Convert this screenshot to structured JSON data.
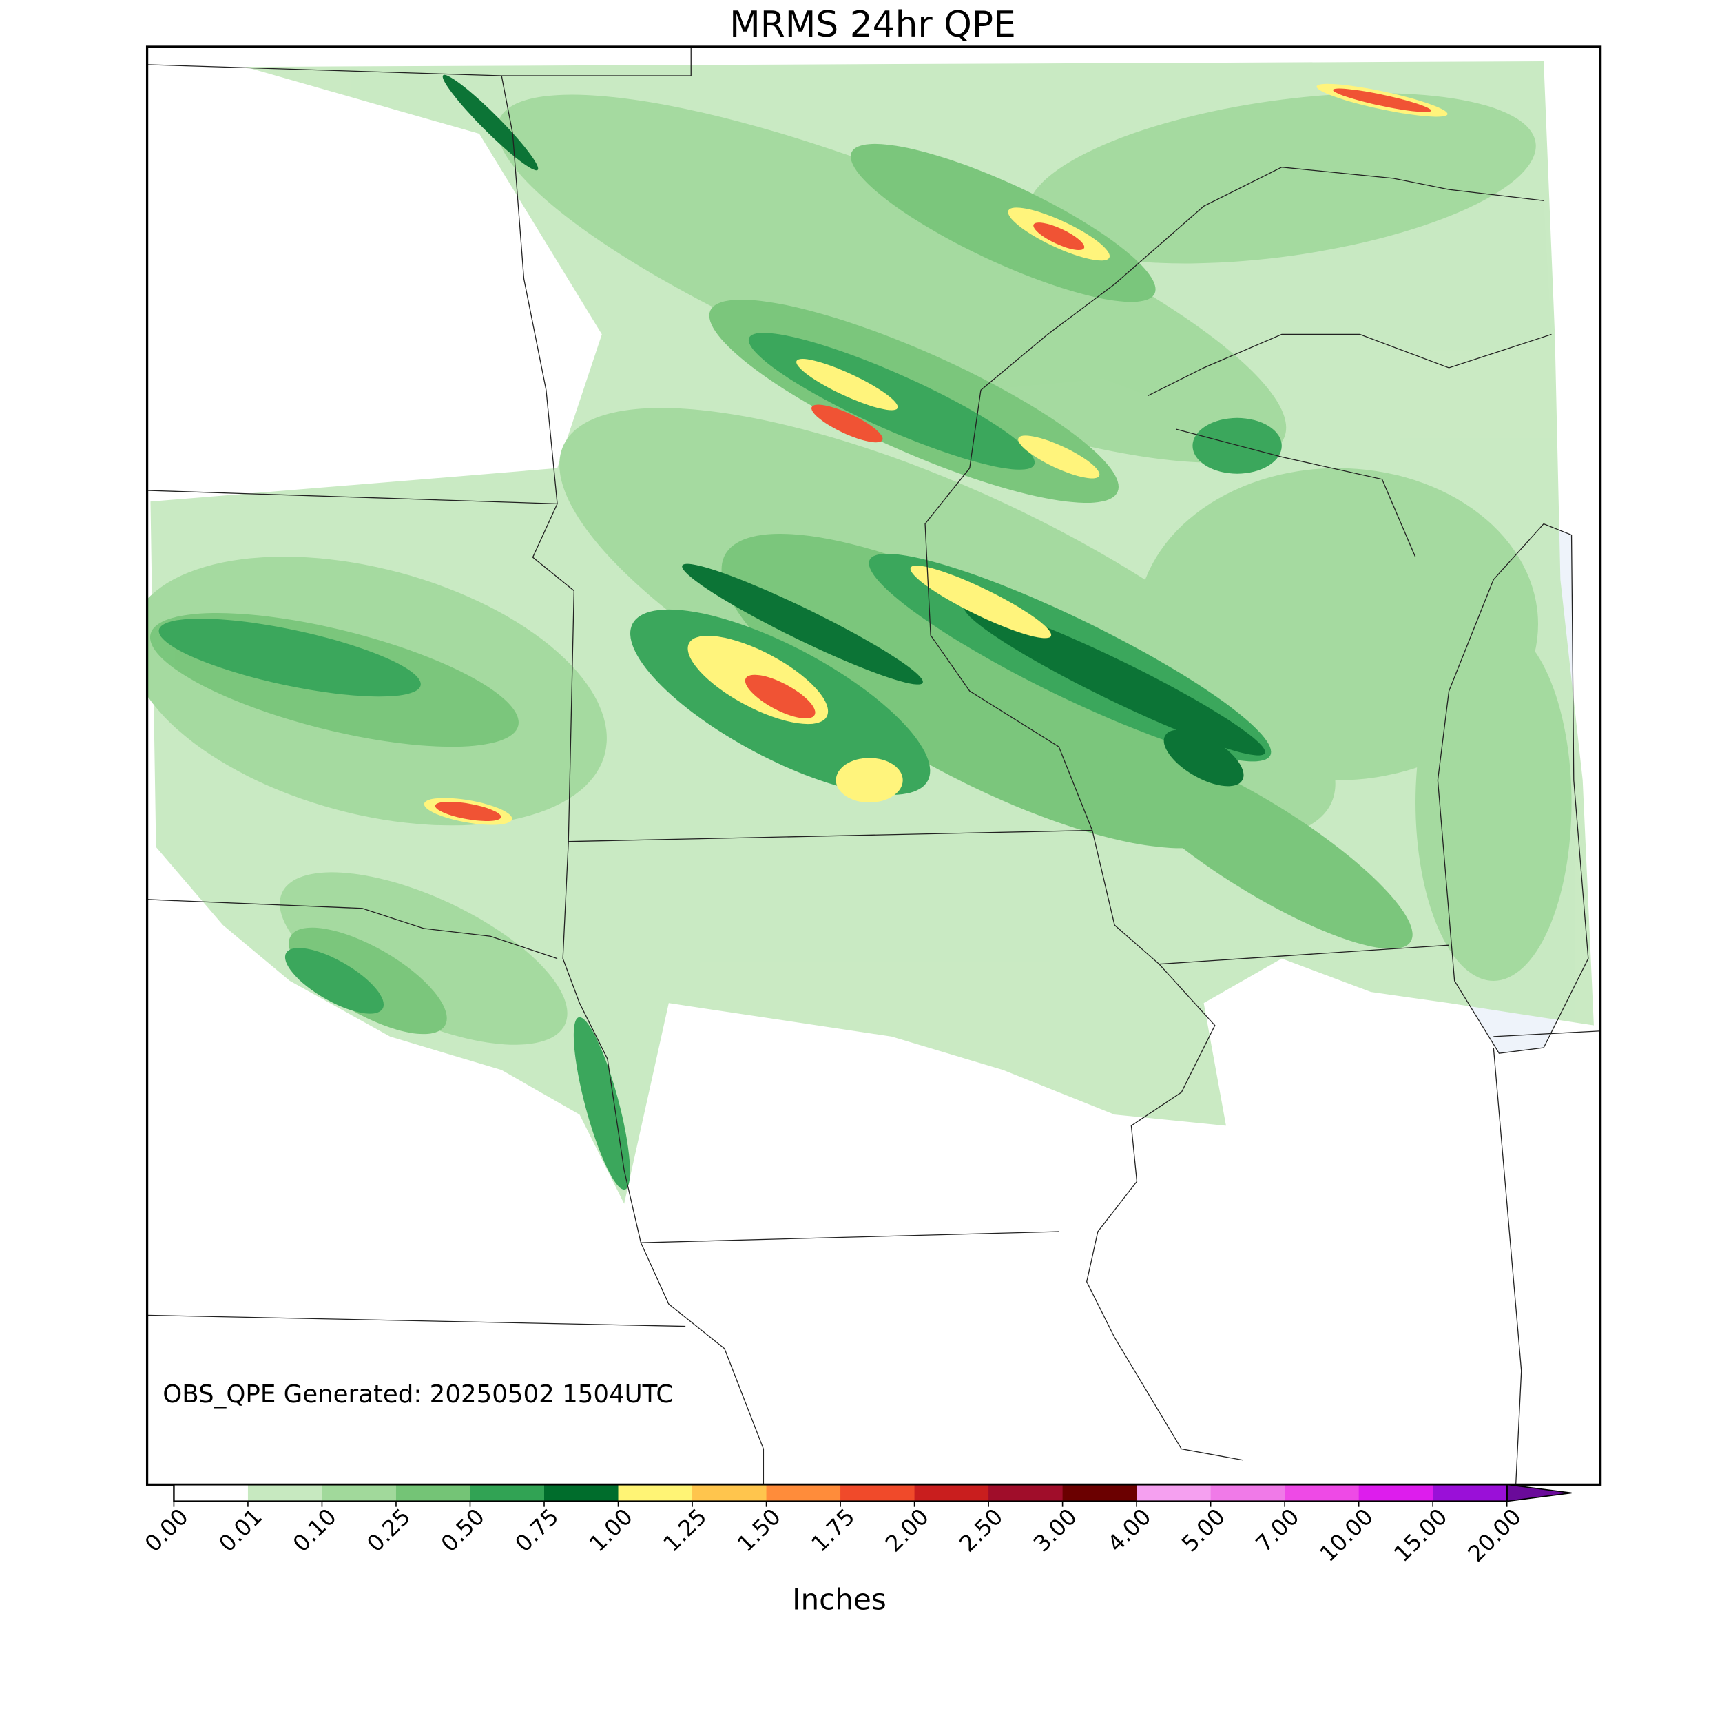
{
  "title": "MRMS 24hr QPE",
  "annotation": "OBS_QPE Generated: 20250502 1504UTC",
  "colorbar": {
    "label": "Inches",
    "ticks": [
      {
        "value": 0,
        "label": "0.00"
      },
      {
        "value": 0.01,
        "label": "0.01"
      },
      {
        "value": 0.1,
        "label": "0.10"
      },
      {
        "value": 0.25,
        "label": "0.25"
      },
      {
        "value": 0.5,
        "label": "0.50"
      },
      {
        "value": 0.75,
        "label": "0.75"
      },
      {
        "value": 1,
        "label": "1.00"
      },
      {
        "value": 1.25,
        "label": "1.25"
      },
      {
        "value": 1.5,
        "label": "1.50"
      },
      {
        "value": 1.75,
        "label": "1.75"
      },
      {
        "value": 2,
        "label": "2.00"
      },
      {
        "value": 2.5,
        "label": "2.50"
      },
      {
        "value": 3,
        "label": "3.00"
      },
      {
        "value": 4,
        "label": "4.00"
      },
      {
        "value": 5,
        "label": "5.00"
      },
      {
        "value": 7,
        "label": "7.00"
      },
      {
        "value": 10,
        "label": "10.00"
      },
      {
        "value": 15,
        "label": "15.00"
      },
      {
        "value": 20,
        "label": "20.00"
      }
    ],
    "colors": [
      "#ffffff",
      "#c7e9c0",
      "#a1d99b",
      "#74c476",
      "#31a354",
      "#006d2c",
      "#fff475",
      "#ffc54d",
      "#ff8c3a",
      "#f04a2a",
      "#c91e1e",
      "#a00d2a",
      "#6b0000",
      "#f5a0f0",
      "#f07ae8",
      "#ee4ae6",
      "#dd1ded",
      "#9a10d8"
    ],
    "extend_color": "#6a0a9a"
  }
}
